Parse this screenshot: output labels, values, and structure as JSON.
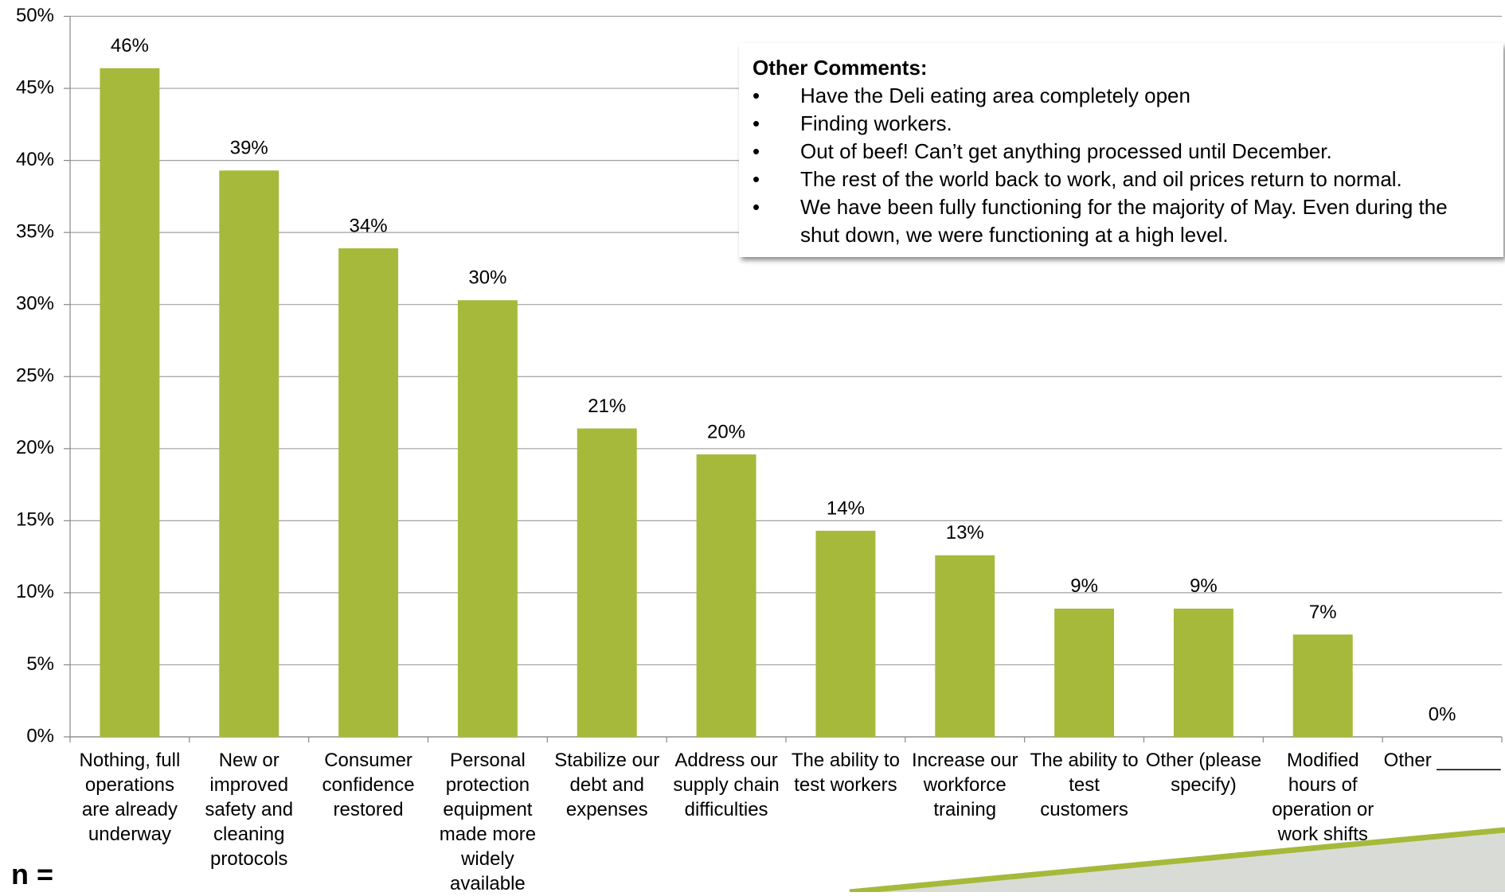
{
  "chart_data": {
    "type": "bar",
    "categories": [
      "Nothing, full operations are already underway",
      "New or improved safety and cleaning protocols",
      "Consumer confidence restored",
      "Personal protection equipment made more widely available",
      "Stabilize our debt and expenses",
      "Address our supply chain difficulties",
      "The ability to test workers",
      "Increase our workforce training",
      "The ability to test customers",
      "Other (please specify)",
      "Modified hours of operation or work shifts",
      "Other ______"
    ],
    "values": [
      46.4,
      39.3,
      33.9,
      30.3,
      21.4,
      19.6,
      14.3,
      12.6,
      8.9,
      8.9,
      7.1,
      0
    ],
    "value_labels": [
      "46%",
      "39%",
      "34%",
      "30%",
      "21%",
      "20%",
      "14%",
      "13%",
      "9%",
      "9%",
      "7%",
      "0%"
    ],
    "color": "#a6b93a",
    "ylim": [
      0,
      50
    ],
    "yticks": [
      {
        "value": 0,
        "label": "0%"
      },
      {
        "value": 5,
        "label": "5%"
      },
      {
        "value": 10,
        "label": "10%"
      },
      {
        "value": 15,
        "label": "15%"
      },
      {
        "value": 20,
        "label": "20%"
      },
      {
        "value": 25,
        "label": "25%"
      },
      {
        "value": 30,
        "label": "30%"
      },
      {
        "value": 35,
        "label": "35%"
      },
      {
        "value": 40,
        "label": "40%"
      },
      {
        "value": 45,
        "label": "45%"
      },
      {
        "value": 50,
        "label": "50%"
      }
    ],
    "grid": true,
    "comments_title": "Other Comments:",
    "comments": [
      "Have the Deli eating area completely open",
      "Finding workers.",
      "Out of beef! Can’t get anything processed until December.",
      "The rest of the world back to work, and oil prices return to normal.",
      "We have been fully functioning for the majority of May. Even during the shut down, we were functioning at a high level."
    ],
    "note": "n ="
  }
}
